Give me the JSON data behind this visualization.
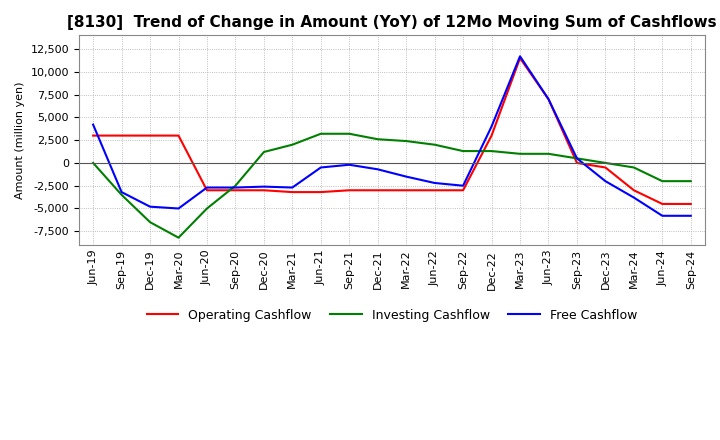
{
  "title": "[8130]  Trend of Change in Amount (YoY) of 12Mo Moving Sum of Cashflows",
  "ylabel": "Amount (million yen)",
  "ylim": [
    -9000,
    14000
  ],
  "yticks": [
    -7500,
    -5000,
    -2500,
    0,
    2500,
    5000,
    7500,
    10000,
    12500
  ],
  "x_labels": [
    "Jun-19",
    "Sep-19",
    "Dec-19",
    "Mar-20",
    "Jun-20",
    "Sep-20",
    "Dec-20",
    "Mar-21",
    "Jun-21",
    "Sep-21",
    "Dec-21",
    "Mar-22",
    "Jun-22",
    "Sep-22",
    "Dec-22",
    "Mar-23",
    "Jun-23",
    "Sep-23",
    "Dec-23",
    "Mar-24",
    "Jun-24",
    "Sep-24"
  ],
  "operating_cashflow": [
    3000,
    3000,
    3000,
    3000,
    -3000,
    -3000,
    -3000,
    -3200,
    -3200,
    -3000,
    -3000,
    -3000,
    -3000,
    -3000,
    3000,
    11500,
    7000,
    0,
    -500,
    -3000,
    -4500,
    -4500
  ],
  "investing_cashflow": [
    0,
    -3500,
    -6500,
    -8200,
    -5000,
    -2500,
    1200,
    2000,
    3200,
    3200,
    2600,
    2400,
    2000,
    1300,
    1300,
    1000,
    1000,
    500,
    0,
    -500,
    -2000,
    -2000
  ],
  "free_cashflow": [
    4200,
    -3200,
    -4800,
    -5000,
    -2700,
    -2700,
    -2600,
    -2700,
    -500,
    -200,
    -700,
    -1500,
    -2200,
    -2500,
    4000,
    11700,
    7000,
    500,
    -2000,
    -3800,
    -5800,
    -5800
  ],
  "op_color": "#ff0000",
  "inv_color": "#008000",
  "free_color": "#0000ff",
  "bg_color": "#ffffff",
  "grid_color": "#aaaaaa",
  "title_fontsize": 11,
  "axis_fontsize": 8,
  "legend_fontsize": 9
}
